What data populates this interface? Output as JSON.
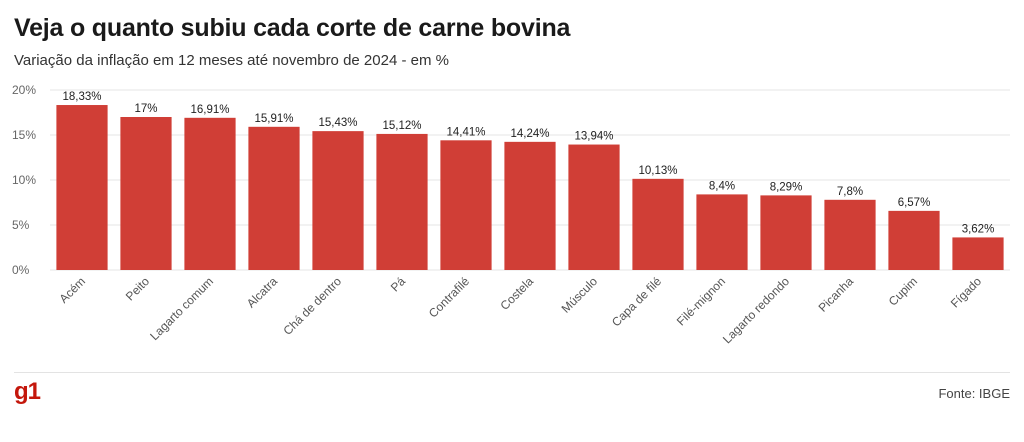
{
  "header": {
    "title": "Veja o quanto subiu cada corte de carne bovina",
    "subtitle": "Variação da inflação em 12 meses até novembro de 2024 - em %"
  },
  "footer": {
    "logo": "g1",
    "source": "Fonte: IBGE"
  },
  "colors": {
    "bar": "#d03e36",
    "grid": "#e6e6e6"
  },
  "chart_data": {
    "type": "bar",
    "categories": [
      "Acém",
      "Peito",
      "Lagarto comum",
      "Alcatra",
      "Chá de dentro",
      "Pá",
      "Contrafilé",
      "Costela",
      "Músculo",
      "Capa de filé",
      "Filé-mignon",
      "Lagarto redondo",
      "Picanha",
      "Cupim",
      "Fígado"
    ],
    "values": [
      18.33,
      17,
      16.91,
      15.91,
      15.43,
      15.12,
      14.41,
      14.24,
      13.94,
      10.13,
      8.4,
      8.29,
      7.8,
      6.57,
      3.62
    ],
    "value_labels": [
      "18,33%",
      "17%",
      "16,91%",
      "15,91%",
      "15,43%",
      "15,12%",
      "14,41%",
      "14,24%",
      "13,94%",
      "10,13%",
      "8,4%",
      "8,29%",
      "7,8%",
      "6,57%",
      "3,62%"
    ],
    "ylim": [
      0,
      20
    ],
    "yticks": [
      0,
      5,
      10,
      15,
      20
    ],
    "ytick_labels": [
      "0%",
      "5%",
      "10%",
      "15%",
      "20%"
    ],
    "grid": true,
    "legend": "none"
  }
}
